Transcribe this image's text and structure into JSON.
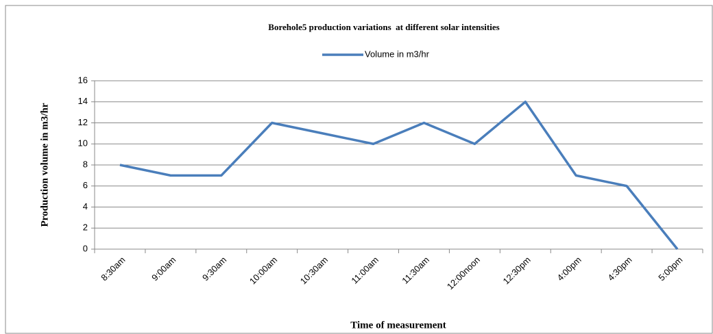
{
  "chart_data": {
    "type": "line",
    "title": "Borehole5 production variations  at different solar intensities",
    "x_label": "Time of measurement",
    "y_label": "Production volume in m3/hr",
    "categories": [
      "8:30am",
      "9:00am",
      "9:30am",
      "10:00am",
      "10:30am",
      "11:00am",
      "11:30am",
      "12:00noon",
      "12:30pm",
      "4:00pm",
      "4:30pm",
      "5:00pm"
    ],
    "series": [
      {
        "name": "Volume in m3/hr",
        "color": "#4a7ebb",
        "values": [
          8,
          7,
          7,
          12,
          11,
          10,
          12,
          10,
          14,
          7,
          6,
          0
        ]
      }
    ],
    "ylim": [
      0,
      16
    ],
    "yticks": [
      0,
      2,
      4,
      6,
      8,
      10,
      12,
      14,
      16
    ],
    "grid": true,
    "legend": "top"
  }
}
